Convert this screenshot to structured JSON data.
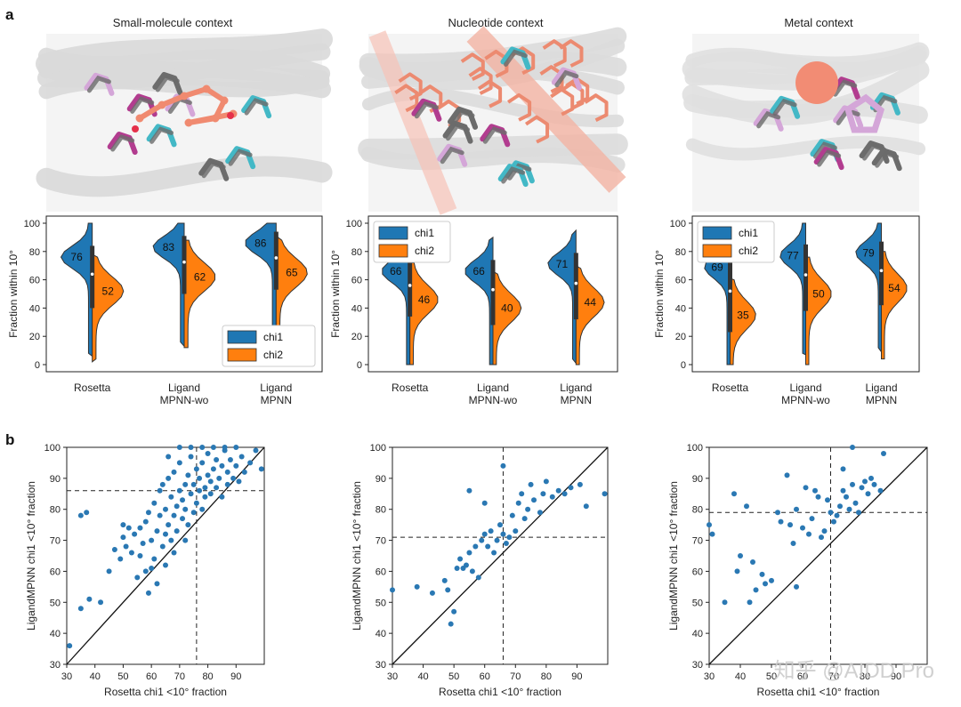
{
  "panel_a": {
    "label": "a",
    "contexts": [
      {
        "title": "Small-molecule context",
        "protein_color": "#d9d9d9",
        "ligand_color": "#f08a70",
        "ligand_kind": "molecule"
      },
      {
        "title": "Nucleotide context",
        "protein_color": "#dcdcdc",
        "ligand_color": "#ec8a70",
        "ligand_kind": "nucleotide"
      },
      {
        "title": "Metal context",
        "protein_color": "#e0e0e0",
        "ligand_color": "#f28c74",
        "ligand_kind": "metal"
      }
    ],
    "sidechain_colors": [
      "#43b8c6",
      "#6c6c6c",
      "#b23c8f",
      "#d4a6d8"
    ]
  },
  "panel_b": {
    "label": "b"
  },
  "watermark": "知乎 @AIDD Pro",
  "chart_data": [
    {
      "type": "violin",
      "ylabel": "Fraction within 10°",
      "ylim": [
        0,
        100
      ],
      "yticks": [
        0,
        20,
        40,
        60,
        80,
        100
      ],
      "categories": [
        "Rosetta",
        "Ligand\nMPNN-wo",
        "Ligand\nMPNN"
      ],
      "series": [
        {
          "name": "chi1",
          "color": "#1f77b4",
          "medians": [
            76,
            83,
            86
          ]
        },
        {
          "name": "chi2",
          "color": "#ff7f0e",
          "medians": [
            52,
            62,
            65
          ]
        }
      ],
      "legend": "bottom-right"
    },
    {
      "type": "violin",
      "ylabel": "Fraction within 10°",
      "ylim": [
        0,
        100
      ],
      "yticks": [
        0,
        20,
        40,
        60,
        80,
        100
      ],
      "categories": [
        "Rosetta",
        "Ligand\nMPNN-wo",
        "Ligand\nMPNN"
      ],
      "series": [
        {
          "name": "chi1",
          "color": "#1f77b4",
          "medians": [
            66,
            66,
            71
          ]
        },
        {
          "name": "chi2",
          "color": "#ff7f0e",
          "medians": [
            46,
            40,
            44
          ]
        }
      ],
      "legend": "top-left"
    },
    {
      "type": "violin",
      "ylabel": "Fraction within 10°",
      "ylim": [
        0,
        100
      ],
      "yticks": [
        0,
        20,
        40,
        60,
        80,
        100
      ],
      "categories": [
        "Rosetta",
        "Ligand\nMPNN-wo",
        "Ligand\nMPNN"
      ],
      "series": [
        {
          "name": "chi1",
          "color": "#1f77b4",
          "medians": [
            69,
            77,
            79
          ]
        },
        {
          "name": "chi2",
          "color": "#ff7f0e",
          "medians": [
            35,
            50,
            54
          ]
        }
      ],
      "legend": "top-left"
    },
    {
      "type": "scatter",
      "xlabel": "Rosetta chi1 <10° fraction",
      "ylabel": "LigandMPNN chi1 <10° fraction",
      "xlim": [
        30,
        100
      ],
      "ylim": [
        30,
        100
      ],
      "xticks": [
        30,
        40,
        50,
        60,
        70,
        80,
        90
      ],
      "yticks": [
        30,
        40,
        50,
        60,
        70,
        80,
        90,
        100
      ],
      "xline": 76,
      "yline": 86,
      "points": [
        [
          31,
          36
        ],
        [
          35,
          48
        ],
        [
          35,
          78
        ],
        [
          37,
          79
        ],
        [
          38,
          51
        ],
        [
          42,
          50
        ],
        [
          45,
          60
        ],
        [
          47,
          67
        ],
        [
          49,
          64
        ],
        [
          50,
          75
        ],
        [
          50,
          71
        ],
        [
          51,
          68
        ],
        [
          52,
          74
        ],
        [
          53,
          66
        ],
        [
          54,
          72
        ],
        [
          55,
          58
        ],
        [
          56,
          65
        ],
        [
          56,
          74
        ],
        [
          57,
          69
        ],
        [
          58,
          60
        ],
        [
          58,
          76
        ],
        [
          59,
          79
        ],
        [
          60,
          61
        ],
        [
          60,
          70
        ],
        [
          61,
          64
        ],
        [
          61,
          82
        ],
        [
          62,
          73
        ],
        [
          63,
          78
        ],
        [
          63,
          86
        ],
        [
          64,
          68
        ],
        [
          64,
          88
        ],
        [
          65,
          80
        ],
        [
          65,
          72
        ],
        [
          66,
          75
        ],
        [
          66,
          90
        ],
        [
          67,
          84
        ],
        [
          67,
          70
        ],
        [
          68,
          78
        ],
        [
          68,
          92
        ],
        [
          69,
          81
        ],
        [
          69,
          73
        ],
        [
          70,
          86
        ],
        [
          70,
          95
        ],
        [
          71,
          77
        ],
        [
          71,
          83
        ],
        [
          72,
          88
        ],
        [
          72,
          80
        ],
        [
          73,
          91
        ],
        [
          73,
          75
        ],
        [
          74,
          85
        ],
        [
          74,
          97
        ],
        [
          75,
          79
        ],
        [
          75,
          88
        ],
        [
          76,
          82
        ],
        [
          76,
          93
        ],
        [
          77,
          86
        ],
        [
          77,
          90
        ],
        [
          78,
          80
        ],
        [
          78,
          95
        ],
        [
          79,
          87
        ],
        [
          79,
          84
        ],
        [
          80,
          91
        ],
        [
          80,
          98
        ],
        [
          81,
          85
        ],
        [
          81,
          89
        ],
        [
          82,
          93
        ],
        [
          83,
          87
        ],
        [
          83,
          96
        ],
        [
          84,
          90
        ],
        [
          85,
          84
        ],
        [
          85,
          94
        ],
        [
          86,
          99
        ],
        [
          87,
          88
        ],
        [
          87,
          92
        ],
        [
          88,
          96
        ],
        [
          89,
          90
        ],
        [
          90,
          94
        ],
        [
          91,
          89
        ],
        [
          92,
          97
        ],
        [
          93,
          92
        ],
        [
          95,
          95
        ],
        [
          97,
          99
        ],
        [
          99,
          93
        ],
        [
          66,
          97
        ],
        [
          70,
          100
        ],
        [
          74,
          100
        ],
        [
          78,
          100
        ],
        [
          82,
          100
        ],
        [
          86,
          100
        ],
        [
          90,
          100
        ],
        [
          62,
          56
        ],
        [
          59,
          53
        ],
        [
          65,
          62
        ],
        [
          68,
          66
        ],
        [
          72,
          70
        ]
      ]
    },
    {
      "type": "scatter",
      "xlabel": "Rosetta chi1 <10° fraction",
      "ylabel": "LigandMPNN chi1 <10° fraction",
      "xlim": [
        30,
        100
      ],
      "ylim": [
        30,
        100
      ],
      "xticks": [
        30,
        40,
        50,
        60,
        70,
        80,
        90
      ],
      "yticks": [
        30,
        40,
        50,
        60,
        70,
        80,
        90,
        100
      ],
      "xline": 66,
      "yline": 71,
      "points": [
        [
          30,
          54
        ],
        [
          38,
          55
        ],
        [
          43,
          53
        ],
        [
          47,
          57
        ],
        [
          48,
          54
        ],
        [
          49,
          43
        ],
        [
          50,
          47
        ],
        [
          51,
          61
        ],
        [
          52,
          64
        ],
        [
          53,
          61
        ],
        [
          54,
          62
        ],
        [
          55,
          66
        ],
        [
          56,
          60
        ],
        [
          57,
          68
        ],
        [
          58,
          58
        ],
        [
          59,
          70
        ],
        [
          60,
          72
        ],
        [
          61,
          68
        ],
        [
          62,
          73
        ],
        [
          63,
          66
        ],
        [
          64,
          70
        ],
        [
          65,
          75
        ],
        [
          66,
          72
        ],
        [
          67,
          69
        ],
        [
          68,
          71
        ],
        [
          69,
          78
        ],
        [
          70,
          73
        ],
        [
          71,
          82
        ],
        [
          72,
          85
        ],
        [
          73,
          77
        ],
        [
          74,
          80
        ],
        [
          75,
          88
        ],
        [
          76,
          83
        ],
        [
          78,
          79
        ],
        [
          79,
          85
        ],
        [
          80,
          89
        ],
        [
          82,
          84
        ],
        [
          84,
          86
        ],
        [
          86,
          85
        ],
        [
          88,
          87
        ],
        [
          91,
          88
        ],
        [
          93,
          81
        ],
        [
          99,
          85
        ],
        [
          66,
          94
        ],
        [
          60,
          82
        ],
        [
          55,
          86
        ]
      ]
    },
    {
      "type": "scatter",
      "xlabel": "Rosetta chi1 <10° fraction",
      "ylabel": "LigandMPNN chi1 <10° fraction",
      "xlim": [
        30,
        100
      ],
      "ylim": [
        30,
        100
      ],
      "xticks": [
        30,
        40,
        50,
        60,
        70,
        80,
        90
      ],
      "yticks": [
        30,
        40,
        50,
        60,
        70,
        80,
        90,
        100
      ],
      "xline": 69,
      "yline": 79,
      "points": [
        [
          30,
          75
        ],
        [
          31,
          72
        ],
        [
          35,
          50
        ],
        [
          38,
          85
        ],
        [
          39,
          60
        ],
        [
          40,
          65
        ],
        [
          42,
          81
        ],
        [
          43,
          50
        ],
        [
          44,
          63
        ],
        [
          45,
          54
        ],
        [
          48,
          56
        ],
        [
          50,
          57
        ],
        [
          52,
          79
        ],
        [
          55,
          91
        ],
        [
          56,
          75
        ],
        [
          57,
          69
        ],
        [
          58,
          80
        ],
        [
          60,
          74
        ],
        [
          61,
          87
        ],
        [
          62,
          72
        ],
        [
          63,
          77
        ],
        [
          64,
          86
        ],
        [
          65,
          84
        ],
        [
          66,
          71
        ],
        [
          67,
          73
        ],
        [
          68,
          83
        ],
        [
          69,
          79
        ],
        [
          70,
          76
        ],
        [
          71,
          78
        ],
        [
          72,
          81
        ],
        [
          73,
          86
        ],
        [
          74,
          84
        ],
        [
          75,
          80
        ],
        [
          76,
          88
        ],
        [
          77,
          82
        ],
        [
          78,
          79
        ],
        [
          79,
          87
        ],
        [
          80,
          89
        ],
        [
          81,
          85
        ],
        [
          82,
          90
        ],
        [
          83,
          88
        ],
        [
          85,
          86
        ],
        [
          86,
          98
        ],
        [
          58,
          55
        ],
        [
          47,
          59
        ],
        [
          53,
          76
        ],
        [
          76,
          100
        ],
        [
          73,
          93
        ]
      ]
    }
  ]
}
